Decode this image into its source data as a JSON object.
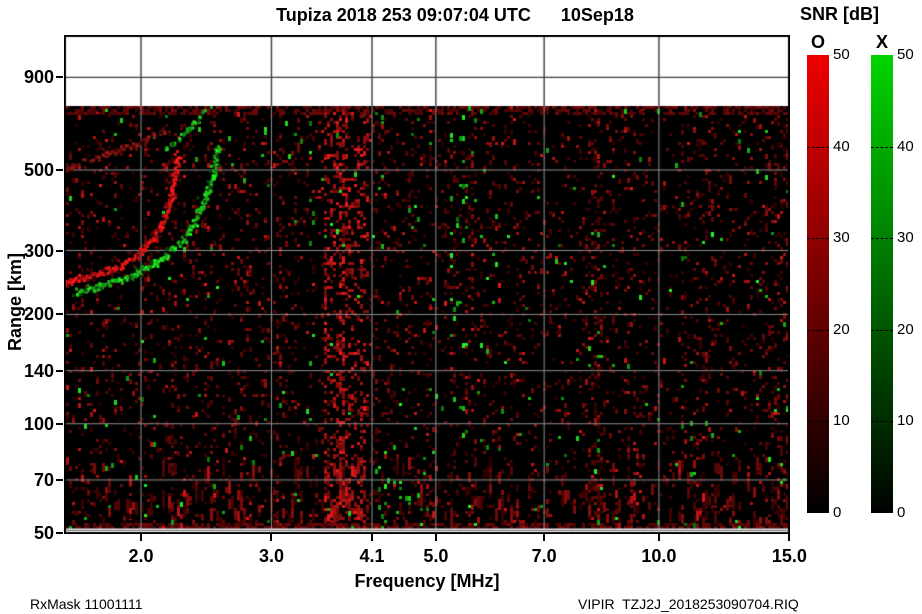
{
  "title": "Tupiza 2018 253 09:07:04 UTC      10Sep18",
  "annotations": {
    "bottom_left": "RxMask 11001111",
    "bottom_right": "VIPIR  TZJ2J_2018253090704.RIQ"
  },
  "colorbar": {
    "title": "SNR [dB]",
    "min": 0,
    "max": 50,
    "ticks": [
      0,
      10,
      20,
      30,
      40,
      50
    ],
    "bars": [
      {
        "label": "O",
        "color_top": "#ee0000",
        "color_bottom": "#000000"
      },
      {
        "label": "X",
        "color_top": "#00d400",
        "color_bottom": "#000200"
      }
    ]
  },
  "chart_data": {
    "type": "heatmap",
    "title": "Tupiza 2018 253 09:07:04 UTC 10Sep18",
    "xlabel": "Frequency [MHz]",
    "ylabel": "Range [km]",
    "x_scale": "log",
    "y_scale": "log",
    "xlim": [
      1.57,
      15.0
    ],
    "ylim": [
      50,
      1190
    ],
    "data_top_km": 750,
    "x_ticks": [
      2.0,
      3.0,
      4.1,
      5.0,
      7.0,
      10.0,
      15.0
    ],
    "x_tick_labels": [
      "2.0",
      "3.0",
      "4.1",
      "5.0",
      "7.0",
      "10.0",
      "15.0"
    ],
    "y_ticks": [
      900,
      500,
      300,
      200,
      140,
      100,
      70,
      50
    ],
    "y_tick_labels": [
      "900",
      "500",
      "300",
      "200",
      "140",
      "100",
      "70",
      "50"
    ],
    "value_label": "SNR [dB]",
    "value_range": [
      0,
      50
    ],
    "background": "#000000",
    "grid": true,
    "series": [
      {
        "name": "O-mode echo trace",
        "mode": "O",
        "color": "#d81414",
        "width": 8,
        "density": 1.0,
        "points": [
          [
            1.57,
            245
          ],
          [
            1.72,
            255
          ],
          [
            1.88,
            270
          ],
          [
            2.0,
            295
          ],
          [
            2.1,
            330
          ],
          [
            2.17,
            385
          ],
          [
            2.22,
            465
          ],
          [
            2.25,
            555
          ]
        ]
      },
      {
        "name": "X-mode echo trace",
        "mode": "X",
        "color": "#1dc21d",
        "width": 8,
        "density": 0.85,
        "points": [
          [
            1.64,
            230
          ],
          [
            1.8,
            242
          ],
          [
            2.0,
            260
          ],
          [
            2.15,
            287
          ],
          [
            2.28,
            318
          ],
          [
            2.39,
            372
          ],
          [
            2.47,
            438
          ],
          [
            2.52,
            510
          ],
          [
            2.55,
            580
          ]
        ]
      },
      {
        "name": "O-mode multiple reflection",
        "mode": "O",
        "color": "#7d1410",
        "width": 6,
        "density": 0.55,
        "points": [
          [
            1.57,
            500
          ],
          [
            1.75,
            540
          ],
          [
            1.98,
            590
          ],
          [
            2.17,
            645
          ]
        ]
      },
      {
        "name": "X-mode multiple reflection",
        "mode": "X",
        "color": "#1db41d",
        "width": 5,
        "density": 0.38,
        "points": [
          [
            2.16,
            570
          ],
          [
            2.26,
            610
          ],
          [
            2.36,
            670
          ],
          [
            2.45,
            738
          ]
        ]
      }
    ],
    "rfi_noise_bands": [
      {
        "f0": 3.5,
        "f1": 4.05,
        "strength": 3.1,
        "bright": true
      },
      {
        "f0": 4.05,
        "f1": 4.6,
        "strength": 1.5
      },
      {
        "f0": 5.1,
        "f1": 5.65,
        "strength": 1.7
      },
      {
        "f0": 6.1,
        "f1": 6.6,
        "strength": 1.25
      },
      {
        "f0": 7.8,
        "f1": 8.4,
        "strength": 1.6
      },
      {
        "f0": 8.9,
        "f1": 9.5,
        "strength": 1.2
      },
      {
        "f0": 10.6,
        "f1": 12.0,
        "strength": 1.35
      },
      {
        "f0": 13.5,
        "f1": 14.9,
        "strength": 1.6
      },
      {
        "f0": 1.62,
        "f1": 1.85,
        "strength": 1.4
      },
      {
        "f0": 2.55,
        "f1": 2.95,
        "strength": 1.2
      }
    ],
    "green_noise_regions": [
      {
        "f0": 5.22,
        "f1": 5.5,
        "km0": 165,
        "km1": 750,
        "p": 0.065
      },
      {
        "f0": 4.1,
        "f1": 4.9,
        "km0": 50,
        "km1": 80,
        "p": 0.05
      },
      {
        "f0": 3.15,
        "f1": 3.55,
        "km0": 330,
        "km1": 645,
        "p": 0.03
      },
      {
        "f0": 13.8,
        "f1": 15.0,
        "km0": 50,
        "km1": 136,
        "p": 0.025
      },
      {
        "f0": 10.4,
        "f1": 11.6,
        "km0": 50,
        "km1": 106,
        "p": 0.012
      },
      {
        "f0": 6.8,
        "f1": 7.6,
        "km0": 56,
        "km1": 93,
        "p": 0.012
      }
    ]
  }
}
